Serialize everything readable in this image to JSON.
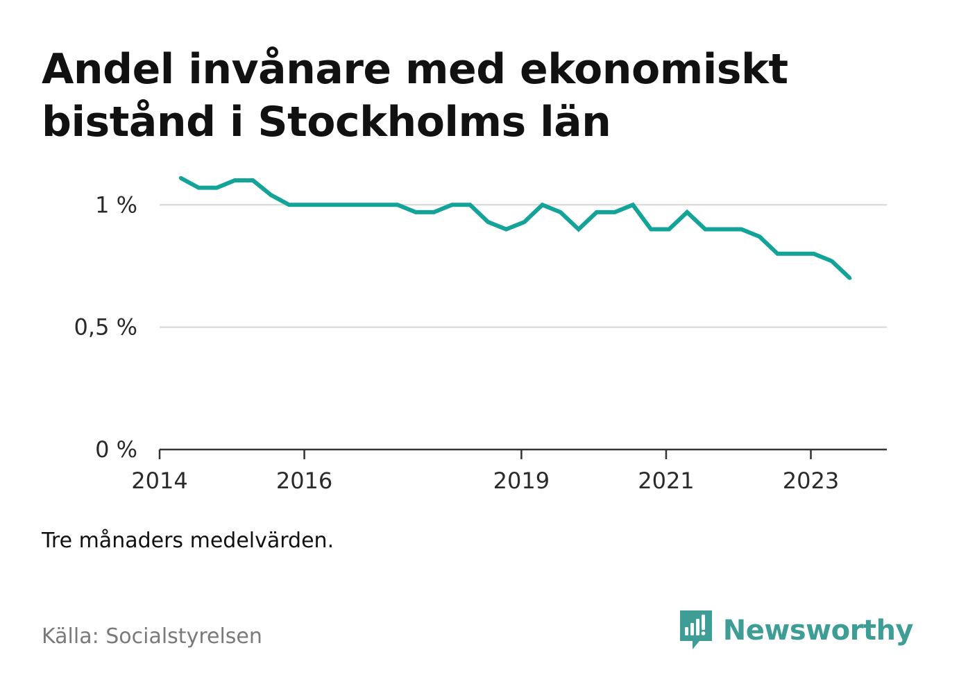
{
  "title": "Andel invånare med ekonomiskt bistånd i Stockholms län",
  "note": "Tre månaders medelvärden.",
  "source": "Källa: Socialstyrelsen",
  "brand": {
    "name": "Newsworthy",
    "icon": "bar-chart-speech-bubble-icon",
    "color": "#3e9d95"
  },
  "colors": {
    "line": "#13a398",
    "grid": "#dddddd",
    "axis": "#333333"
  },
  "chart_data": {
    "type": "line",
    "title": "Andel invånare med ekonomiskt bistånd i Stockholms län",
    "xlabel": "",
    "ylabel": "",
    "xlim": [
      2014.0,
      2024.05
    ],
    "ylim": [
      0,
      1.1
    ],
    "grid": true,
    "legend": "none",
    "x_ticks": [
      {
        "value": 2014,
        "label": "2014"
      },
      {
        "value": 2016,
        "label": "2016"
      },
      {
        "value": 2019,
        "label": "2019"
      },
      {
        "value": 2021,
        "label": "2021"
      },
      {
        "value": 2023,
        "label": "2023"
      }
    ],
    "y_ticks": [
      {
        "value": 0,
        "label": "0 %"
      },
      {
        "value": 0.5,
        "label": "0,5 %"
      },
      {
        "value": 1,
        "label": "1 %"
      }
    ],
    "series": [
      {
        "color": "#13a398",
        "x": [
          2014.29,
          2014.54,
          2014.79,
          2015.04,
          2015.29,
          2015.54,
          2015.79,
          2016.04,
          2016.29,
          2016.54,
          2016.79,
          2017.04,
          2017.29,
          2017.54,
          2017.79,
          2018.04,
          2018.29,
          2018.54,
          2018.79,
          2019.04,
          2019.29,
          2019.54,
          2019.79,
          2020.04,
          2020.29,
          2020.54,
          2020.79,
          2021.04,
          2021.29,
          2021.54,
          2021.79,
          2022.04,
          2022.29,
          2022.54,
          2022.79,
          2023.04,
          2023.29,
          2023.54
        ],
        "y": [
          1.11,
          1.07,
          1.07,
          1.1,
          1.1,
          1.04,
          1.0,
          1.0,
          1.0,
          1.0,
          1.0,
          1.0,
          1.0,
          0.97,
          0.97,
          1.0,
          1.0,
          0.93,
          0.9,
          0.93,
          1.0,
          0.97,
          0.9,
          0.97,
          0.97,
          1.0,
          0.9,
          0.9,
          0.97,
          0.9,
          0.9,
          0.9,
          0.87,
          0.8,
          0.8,
          0.8,
          0.77,
          0.7
        ]
      }
    ]
  }
}
